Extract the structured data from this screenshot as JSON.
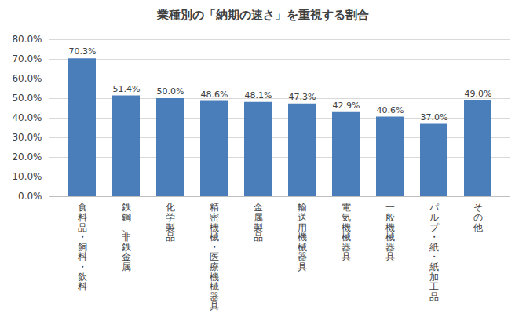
{
  "chart_data": {
    "type": "bar",
    "title": "業種別の「納期の速さ」を重視する割合",
    "categories": [
      "食料品・飼料・飲料",
      "鉄鋼、非鉄金属",
      "化学製品",
      "精密機械・医療機械器具",
      "金属製品",
      "輸送用機械器具",
      "電気機械器具",
      "一般機械器具",
      "パルプ・紙・紙加工品",
      "その他"
    ],
    "values": [
      70.3,
      51.4,
      50.0,
      48.6,
      48.1,
      47.3,
      42.9,
      40.6,
      37.0,
      49.0
    ],
    "value_labels": [
      "70.3%",
      "51.4%",
      "50.0%",
      "48.6%",
      "48.1%",
      "47.3%",
      "42.9%",
      "40.6%",
      "37.0%",
      "49.0%"
    ],
    "color": "#4a7ebb",
    "ylim": [
      0,
      80
    ],
    "yticks": [
      {
        "value": 0,
        "label": "0.0%"
      },
      {
        "value": 10,
        "label": "10.0%"
      },
      {
        "value": 20,
        "label": "20.0%"
      },
      {
        "value": 30,
        "label": "30.0%"
      },
      {
        "value": 40,
        "label": "40.0%"
      },
      {
        "value": 50,
        "label": "50.0%"
      },
      {
        "value": 60,
        "label": "60.0%"
      },
      {
        "value": 70,
        "label": "70.0%"
      },
      {
        "value": 80,
        "label": "80.0%"
      }
    ],
    "grid": true,
    "data_labels": true
  }
}
